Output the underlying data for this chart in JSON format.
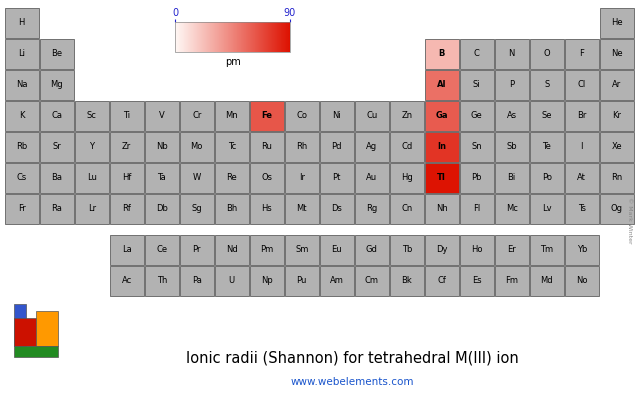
{
  "title": "Ionic radii (Shannon) for tetrahedral M(III) ion",
  "url": "www.webelements.com",
  "colorbar_label": "pm",
  "colorbar_min": 0,
  "colorbar_max": 90,
  "no_data_color": "#b2b2b2",
  "border_color": "#606060",
  "elements": [
    {
      "symbol": "H",
      "row": 1,
      "col": 1,
      "value": null
    },
    {
      "symbol": "He",
      "row": 1,
      "col": 18,
      "value": null
    },
    {
      "symbol": "Li",
      "row": 2,
      "col": 1,
      "value": null
    },
    {
      "symbol": "Be",
      "row": 2,
      "col": 2,
      "value": null
    },
    {
      "symbol": "B",
      "row": 2,
      "col": 13,
      "value": 25
    },
    {
      "symbol": "C",
      "row": 2,
      "col": 14,
      "value": null
    },
    {
      "symbol": "N",
      "row": 2,
      "col": 15,
      "value": null
    },
    {
      "symbol": "O",
      "row": 2,
      "col": 16,
      "value": null
    },
    {
      "symbol": "F",
      "row": 2,
      "col": 17,
      "value": null
    },
    {
      "symbol": "Ne",
      "row": 2,
      "col": 18,
      "value": null
    },
    {
      "symbol": "Na",
      "row": 3,
      "col": 1,
      "value": null
    },
    {
      "symbol": "Mg",
      "row": 3,
      "col": 2,
      "value": null
    },
    {
      "symbol": "Al",
      "row": 3,
      "col": 13,
      "value": 53
    },
    {
      "symbol": "Si",
      "row": 3,
      "col": 14,
      "value": null
    },
    {
      "symbol": "P",
      "row": 3,
      "col": 15,
      "value": null
    },
    {
      "symbol": "S",
      "row": 3,
      "col": 16,
      "value": null
    },
    {
      "symbol": "Cl",
      "row": 3,
      "col": 17,
      "value": null
    },
    {
      "symbol": "Ar",
      "row": 3,
      "col": 18,
      "value": null
    },
    {
      "symbol": "K",
      "row": 4,
      "col": 1,
      "value": null
    },
    {
      "symbol": "Ca",
      "row": 4,
      "col": 2,
      "value": null
    },
    {
      "symbol": "Sc",
      "row": 4,
      "col": 3,
      "value": null
    },
    {
      "symbol": "Ti",
      "row": 4,
      "col": 4,
      "value": null
    },
    {
      "symbol": "V",
      "row": 4,
      "col": 5,
      "value": null
    },
    {
      "symbol": "Cr",
      "row": 4,
      "col": 6,
      "value": null
    },
    {
      "symbol": "Mn",
      "row": 4,
      "col": 7,
      "value": null
    },
    {
      "symbol": "Fe",
      "row": 4,
      "col": 8,
      "value": 63
    },
    {
      "symbol": "Co",
      "row": 4,
      "col": 9,
      "value": null
    },
    {
      "symbol": "Ni",
      "row": 4,
      "col": 10,
      "value": null
    },
    {
      "symbol": "Cu",
      "row": 4,
      "col": 11,
      "value": null
    },
    {
      "symbol": "Zn",
      "row": 4,
      "col": 12,
      "value": null
    },
    {
      "symbol": "Ga",
      "row": 4,
      "col": 13,
      "value": 61
    },
    {
      "symbol": "Ge",
      "row": 4,
      "col": 14,
      "value": null
    },
    {
      "symbol": "As",
      "row": 4,
      "col": 15,
      "value": null
    },
    {
      "symbol": "Se",
      "row": 4,
      "col": 16,
      "value": null
    },
    {
      "symbol": "Br",
      "row": 4,
      "col": 17,
      "value": null
    },
    {
      "symbol": "Kr",
      "row": 4,
      "col": 18,
      "value": null
    },
    {
      "symbol": "Rb",
      "row": 5,
      "col": 1,
      "value": null
    },
    {
      "symbol": "Sr",
      "row": 5,
      "col": 2,
      "value": null
    },
    {
      "symbol": "Y",
      "row": 5,
      "col": 3,
      "value": null
    },
    {
      "symbol": "Zr",
      "row": 5,
      "col": 4,
      "value": null
    },
    {
      "symbol": "Nb",
      "row": 5,
      "col": 5,
      "value": null
    },
    {
      "symbol": "Mo",
      "row": 5,
      "col": 6,
      "value": null
    },
    {
      "symbol": "Tc",
      "row": 5,
      "col": 7,
      "value": null
    },
    {
      "symbol": "Ru",
      "row": 5,
      "col": 8,
      "value": null
    },
    {
      "symbol": "Rh",
      "row": 5,
      "col": 9,
      "value": null
    },
    {
      "symbol": "Pd",
      "row": 5,
      "col": 10,
      "value": null
    },
    {
      "symbol": "Ag",
      "row": 5,
      "col": 11,
      "value": null
    },
    {
      "symbol": "Cd",
      "row": 5,
      "col": 12,
      "value": null
    },
    {
      "symbol": "In",
      "row": 5,
      "col": 13,
      "value": 76
    },
    {
      "symbol": "Sn",
      "row": 5,
      "col": 14,
      "value": null
    },
    {
      "symbol": "Sb",
      "row": 5,
      "col": 15,
      "value": null
    },
    {
      "symbol": "Te",
      "row": 5,
      "col": 16,
      "value": null
    },
    {
      "symbol": "I",
      "row": 5,
      "col": 17,
      "value": null
    },
    {
      "symbol": "Xe",
      "row": 5,
      "col": 18,
      "value": null
    },
    {
      "symbol": "Cs",
      "row": 6,
      "col": 1,
      "value": null
    },
    {
      "symbol": "Ba",
      "row": 6,
      "col": 2,
      "value": null
    },
    {
      "symbol": "Lu",
      "row": 6,
      "col": 3,
      "value": null
    },
    {
      "symbol": "Hf",
      "row": 6,
      "col": 4,
      "value": null
    },
    {
      "symbol": "Ta",
      "row": 6,
      "col": 5,
      "value": null
    },
    {
      "symbol": "W",
      "row": 6,
      "col": 6,
      "value": null
    },
    {
      "symbol": "Re",
      "row": 6,
      "col": 7,
      "value": null
    },
    {
      "symbol": "Os",
      "row": 6,
      "col": 8,
      "value": null
    },
    {
      "symbol": "Ir",
      "row": 6,
      "col": 9,
      "value": null
    },
    {
      "symbol": "Pt",
      "row": 6,
      "col": 10,
      "value": null
    },
    {
      "symbol": "Au",
      "row": 6,
      "col": 11,
      "value": null
    },
    {
      "symbol": "Hg",
      "row": 6,
      "col": 12,
      "value": null
    },
    {
      "symbol": "Tl",
      "row": 6,
      "col": 13,
      "value": 89
    },
    {
      "symbol": "Pb",
      "row": 6,
      "col": 14,
      "value": null
    },
    {
      "symbol": "Bi",
      "row": 6,
      "col": 15,
      "value": null
    },
    {
      "symbol": "Po",
      "row": 6,
      "col": 16,
      "value": null
    },
    {
      "symbol": "At",
      "row": 6,
      "col": 17,
      "value": null
    },
    {
      "symbol": "Rn",
      "row": 6,
      "col": 18,
      "value": null
    },
    {
      "symbol": "Fr",
      "row": 7,
      "col": 1,
      "value": null
    },
    {
      "symbol": "Ra",
      "row": 7,
      "col": 2,
      "value": null
    },
    {
      "symbol": "Lr",
      "row": 7,
      "col": 3,
      "value": null
    },
    {
      "symbol": "Rf",
      "row": 7,
      "col": 4,
      "value": null
    },
    {
      "symbol": "Db",
      "row": 7,
      "col": 5,
      "value": null
    },
    {
      "symbol": "Sg",
      "row": 7,
      "col": 6,
      "value": null
    },
    {
      "symbol": "Bh",
      "row": 7,
      "col": 7,
      "value": null
    },
    {
      "symbol": "Hs",
      "row": 7,
      "col": 8,
      "value": null
    },
    {
      "symbol": "Mt",
      "row": 7,
      "col": 9,
      "value": null
    },
    {
      "symbol": "Ds",
      "row": 7,
      "col": 10,
      "value": null
    },
    {
      "symbol": "Rg",
      "row": 7,
      "col": 11,
      "value": null
    },
    {
      "symbol": "Cn",
      "row": 7,
      "col": 12,
      "value": null
    },
    {
      "symbol": "Nh",
      "row": 7,
      "col": 13,
      "value": null
    },
    {
      "symbol": "Fl",
      "row": 7,
      "col": 14,
      "value": null
    },
    {
      "symbol": "Mc",
      "row": 7,
      "col": 15,
      "value": null
    },
    {
      "symbol": "Lv",
      "row": 7,
      "col": 16,
      "value": null
    },
    {
      "symbol": "Ts",
      "row": 7,
      "col": 17,
      "value": null
    },
    {
      "symbol": "Og",
      "row": 7,
      "col": 18,
      "value": null
    },
    {
      "symbol": "La",
      "row": 9,
      "col": 4,
      "value": null
    },
    {
      "symbol": "Ce",
      "row": 9,
      "col": 5,
      "value": null
    },
    {
      "symbol": "Pr",
      "row": 9,
      "col": 6,
      "value": null
    },
    {
      "symbol": "Nd",
      "row": 9,
      "col": 7,
      "value": null
    },
    {
      "symbol": "Pm",
      "row": 9,
      "col": 8,
      "value": null
    },
    {
      "symbol": "Sm",
      "row": 9,
      "col": 9,
      "value": null
    },
    {
      "symbol": "Eu",
      "row": 9,
      "col": 10,
      "value": null
    },
    {
      "symbol": "Gd",
      "row": 9,
      "col": 11,
      "value": null
    },
    {
      "symbol": "Tb",
      "row": 9,
      "col": 12,
      "value": null
    },
    {
      "symbol": "Dy",
      "row": 9,
      "col": 13,
      "value": null
    },
    {
      "symbol": "Ho",
      "row": 9,
      "col": 14,
      "value": null
    },
    {
      "symbol": "Er",
      "row": 9,
      "col": 15,
      "value": null
    },
    {
      "symbol": "Tm",
      "row": 9,
      "col": 16,
      "value": null
    },
    {
      "symbol": "Yb",
      "row": 9,
      "col": 17,
      "value": null
    },
    {
      "symbol": "Ac",
      "row": 10,
      "col": 4,
      "value": null
    },
    {
      "symbol": "Th",
      "row": 10,
      "col": 5,
      "value": null
    },
    {
      "symbol": "Pa",
      "row": 10,
      "col": 6,
      "value": null
    },
    {
      "symbol": "U",
      "row": 10,
      "col": 7,
      "value": null
    },
    {
      "symbol": "Np",
      "row": 10,
      "col": 8,
      "value": null
    },
    {
      "symbol": "Pu",
      "row": 10,
      "col": 9,
      "value": null
    },
    {
      "symbol": "Am",
      "row": 10,
      "col": 10,
      "value": null
    },
    {
      "symbol": "Cm",
      "row": 10,
      "col": 11,
      "value": null
    },
    {
      "symbol": "Bk",
      "row": 10,
      "col": 12,
      "value": null
    },
    {
      "symbol": "Cf",
      "row": 10,
      "col": 13,
      "value": null
    },
    {
      "symbol": "Es",
      "row": 10,
      "col": 14,
      "value": null
    },
    {
      "symbol": "Fm",
      "row": 10,
      "col": 15,
      "value": null
    },
    {
      "symbol": "Md",
      "row": 10,
      "col": 16,
      "value": null
    },
    {
      "symbol": "No",
      "row": 10,
      "col": 17,
      "value": null
    }
  ]
}
